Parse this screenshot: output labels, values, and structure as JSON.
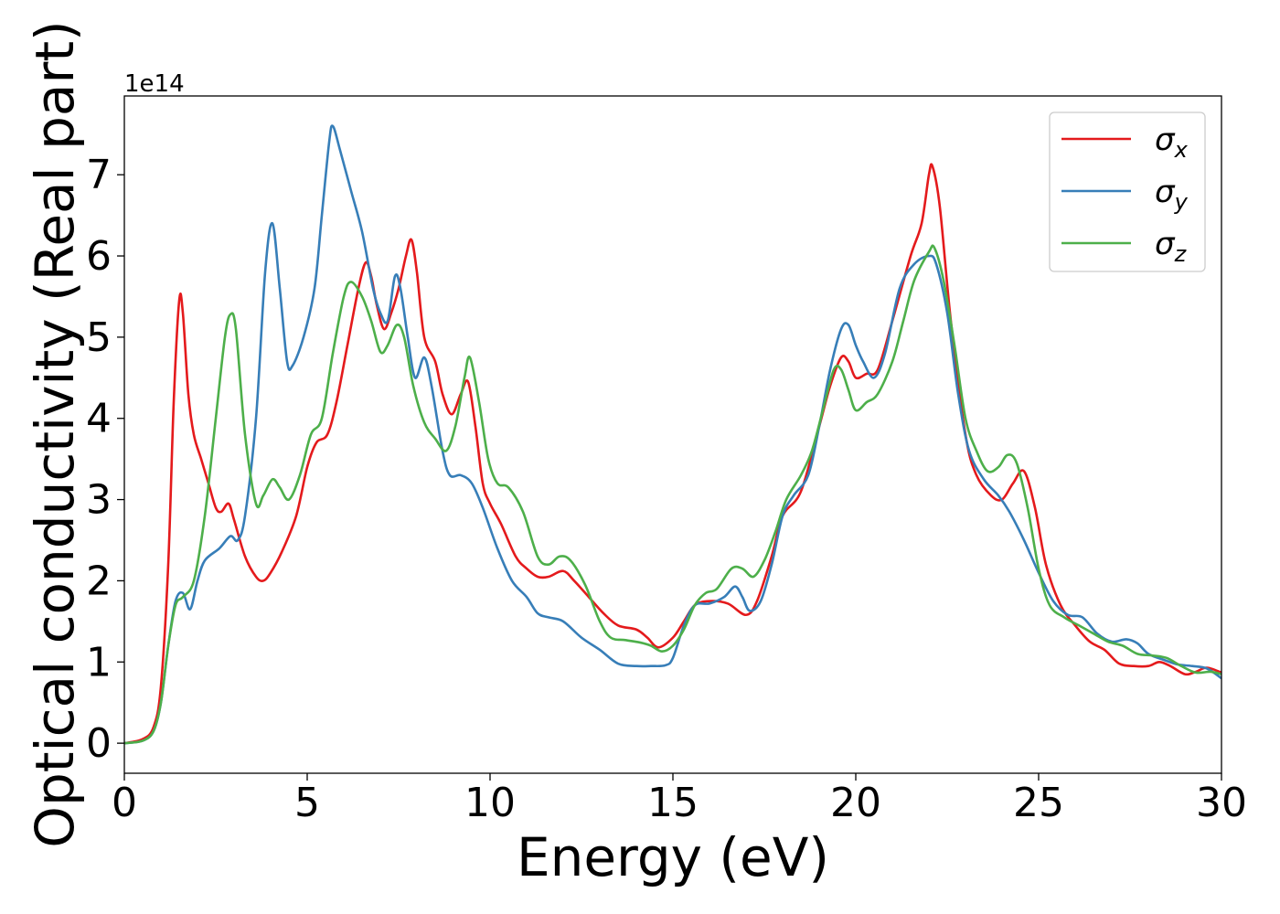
{
  "chart_data": {
    "type": "line",
    "xlabel": "Energy (eV)",
    "ylabel": "Optical conductivity (Real part)",
    "y_offset_text": "1e14",
    "xlim": [
      0,
      30
    ],
    "ylim": [
      -0.37,
      7.97
    ],
    "x_ticks": [
      0,
      5,
      10,
      15,
      20,
      25,
      30
    ],
    "x_tick_labels": [
      "0",
      "5",
      "10",
      "15",
      "20",
      "25",
      "30"
    ],
    "y_ticks": [
      0,
      1,
      2,
      3,
      4,
      5,
      6,
      7
    ],
    "y_tick_labels": [
      "0",
      "1",
      "2",
      "3",
      "4",
      "5",
      "6",
      "7"
    ],
    "y_unit_scale": "1e14",
    "grid": false,
    "legend_position": "top-right",
    "series": [
      {
        "name": "σx",
        "legend_symbol": "σ",
        "legend_subscript": "x",
        "color": "#e41a1c",
        "points": [
          [
            0,
            0
          ],
          [
            0.5,
            0.05
          ],
          [
            0.8,
            0.2
          ],
          [
            1.0,
            0.7
          ],
          [
            1.2,
            2.2
          ],
          [
            1.35,
            4.2
          ],
          [
            1.5,
            5.45
          ],
          [
            1.6,
            5.3
          ],
          [
            1.75,
            4.3
          ],
          [
            1.9,
            3.8
          ],
          [
            2.1,
            3.5
          ],
          [
            2.3,
            3.2
          ],
          [
            2.5,
            2.9
          ],
          [
            2.65,
            2.85
          ],
          [
            2.85,
            2.95
          ],
          [
            3.0,
            2.75
          ],
          [
            3.3,
            2.3
          ],
          [
            3.6,
            2.05
          ],
          [
            3.8,
            2.0
          ],
          [
            4.0,
            2.1
          ],
          [
            4.3,
            2.35
          ],
          [
            4.7,
            2.8
          ],
          [
            5.0,
            3.4
          ],
          [
            5.25,
            3.7
          ],
          [
            5.55,
            3.8
          ],
          [
            5.8,
            4.2
          ],
          [
            6.1,
            4.9
          ],
          [
            6.4,
            5.6
          ],
          [
            6.6,
            5.92
          ],
          [
            6.75,
            5.75
          ],
          [
            6.9,
            5.4
          ],
          [
            7.1,
            5.1
          ],
          [
            7.3,
            5.3
          ],
          [
            7.5,
            5.6
          ],
          [
            7.7,
            6.0
          ],
          [
            7.85,
            6.2
          ],
          [
            8.0,
            5.8
          ],
          [
            8.2,
            5.0
          ],
          [
            8.5,
            4.7
          ],
          [
            8.7,
            4.3
          ],
          [
            8.95,
            4.05
          ],
          [
            9.2,
            4.3
          ],
          [
            9.4,
            4.45
          ],
          [
            9.6,
            3.9
          ],
          [
            9.8,
            3.2
          ],
          [
            10.0,
            2.95
          ],
          [
            10.3,
            2.7
          ],
          [
            10.7,
            2.3
          ],
          [
            11.0,
            2.15
          ],
          [
            11.3,
            2.05
          ],
          [
            11.6,
            2.05
          ],
          [
            12.0,
            2.12
          ],
          [
            12.3,
            2.0
          ],
          [
            12.7,
            1.8
          ],
          [
            13.1,
            1.6
          ],
          [
            13.5,
            1.45
          ],
          [
            14.0,
            1.4
          ],
          [
            14.3,
            1.3
          ],
          [
            14.6,
            1.18
          ],
          [
            15.0,
            1.3
          ],
          [
            15.3,
            1.5
          ],
          [
            15.6,
            1.7
          ],
          [
            16.0,
            1.75
          ],
          [
            16.5,
            1.72
          ],
          [
            17.0,
            1.58
          ],
          [
            17.3,
            1.75
          ],
          [
            17.7,
            2.3
          ],
          [
            18.0,
            2.8
          ],
          [
            18.5,
            3.1
          ],
          [
            19.0,
            3.9
          ],
          [
            19.3,
            4.4
          ],
          [
            19.6,
            4.75
          ],
          [
            19.8,
            4.7
          ],
          [
            20.0,
            4.5
          ],
          [
            20.3,
            4.55
          ],
          [
            20.6,
            4.6
          ],
          [
            21.0,
            5.2
          ],
          [
            21.5,
            6.0
          ],
          [
            21.8,
            6.4
          ],
          [
            22.0,
            7.0
          ],
          [
            22.1,
            7.1
          ],
          [
            22.3,
            6.6
          ],
          [
            22.6,
            5.2
          ],
          [
            23.0,
            3.8
          ],
          [
            23.3,
            3.3
          ],
          [
            23.7,
            3.05
          ],
          [
            24.0,
            3.0
          ],
          [
            24.3,
            3.2
          ],
          [
            24.6,
            3.35
          ],
          [
            24.9,
            2.9
          ],
          [
            25.2,
            2.2
          ],
          [
            25.6,
            1.7
          ],
          [
            26.0,
            1.45
          ],
          [
            26.4,
            1.25
          ],
          [
            26.8,
            1.15
          ],
          [
            27.2,
            0.98
          ],
          [
            27.6,
            0.95
          ],
          [
            28.0,
            0.95
          ],
          [
            28.3,
            1.0
          ],
          [
            28.6,
            0.95
          ],
          [
            29.0,
            0.85
          ],
          [
            29.3,
            0.88
          ],
          [
            29.6,
            0.93
          ],
          [
            30.0,
            0.87
          ]
        ]
      },
      {
        "name": "σy",
        "legend_symbol": "σ",
        "legend_subscript": "y",
        "color": "#377eb8",
        "points": [
          [
            0,
            0
          ],
          [
            0.5,
            0.03
          ],
          [
            0.8,
            0.15
          ],
          [
            1.0,
            0.5
          ],
          [
            1.2,
            1.2
          ],
          [
            1.4,
            1.75
          ],
          [
            1.6,
            1.85
          ],
          [
            1.8,
            1.65
          ],
          [
            2.0,
            2.0
          ],
          [
            2.2,
            2.25
          ],
          [
            2.6,
            2.4
          ],
          [
            2.9,
            2.55
          ],
          [
            3.1,
            2.5
          ],
          [
            3.3,
            2.8
          ],
          [
            3.6,
            4.0
          ],
          [
            3.85,
            5.8
          ],
          [
            4.05,
            6.4
          ],
          [
            4.25,
            5.6
          ],
          [
            4.45,
            4.7
          ],
          [
            4.6,
            4.65
          ],
          [
            4.9,
            5.0
          ],
          [
            5.2,
            5.6
          ],
          [
            5.4,
            6.5
          ],
          [
            5.6,
            7.4
          ],
          [
            5.7,
            7.6
          ],
          [
            5.9,
            7.3
          ],
          [
            6.2,
            6.8
          ],
          [
            6.5,
            6.3
          ],
          [
            6.8,
            5.6
          ],
          [
            7.0,
            5.3
          ],
          [
            7.2,
            5.2
          ],
          [
            7.4,
            5.75
          ],
          [
            7.55,
            5.6
          ],
          [
            7.75,
            5.0
          ],
          [
            7.95,
            4.5
          ],
          [
            8.2,
            4.75
          ],
          [
            8.4,
            4.4
          ],
          [
            8.7,
            3.6
          ],
          [
            8.9,
            3.3
          ],
          [
            9.2,
            3.3
          ],
          [
            9.5,
            3.2
          ],
          [
            9.8,
            2.9
          ],
          [
            10.2,
            2.4
          ],
          [
            10.6,
            2.0
          ],
          [
            11.0,
            1.8
          ],
          [
            11.3,
            1.6
          ],
          [
            11.6,
            1.55
          ],
          [
            12.0,
            1.5
          ],
          [
            12.5,
            1.3
          ],
          [
            13.0,
            1.15
          ],
          [
            13.5,
            0.98
          ],
          [
            14.0,
            0.95
          ],
          [
            14.4,
            0.95
          ],
          [
            14.8,
            0.96
          ],
          [
            15.0,
            1.05
          ],
          [
            15.3,
            1.45
          ],
          [
            15.6,
            1.7
          ],
          [
            16.0,
            1.72
          ],
          [
            16.4,
            1.8
          ],
          [
            16.7,
            1.93
          ],
          [
            16.9,
            1.8
          ],
          [
            17.1,
            1.63
          ],
          [
            17.4,
            1.75
          ],
          [
            17.7,
            2.2
          ],
          [
            18.0,
            2.8
          ],
          [
            18.3,
            3.05
          ],
          [
            18.7,
            3.3
          ],
          [
            19.0,
            3.9
          ],
          [
            19.3,
            4.6
          ],
          [
            19.6,
            5.1
          ],
          [
            19.8,
            5.15
          ],
          [
            20.0,
            4.9
          ],
          [
            20.2,
            4.7
          ],
          [
            20.5,
            4.5
          ],
          [
            20.8,
            4.8
          ],
          [
            21.2,
            5.6
          ],
          [
            21.6,
            5.9
          ],
          [
            22.0,
            6.0
          ],
          [
            22.2,
            5.9
          ],
          [
            22.5,
            5.3
          ],
          [
            22.8,
            4.3
          ],
          [
            23.1,
            3.6
          ],
          [
            23.5,
            3.25
          ],
          [
            23.9,
            3.05
          ],
          [
            24.2,
            2.85
          ],
          [
            24.6,
            2.5
          ],
          [
            25.0,
            2.1
          ],
          [
            25.4,
            1.75
          ],
          [
            25.8,
            1.58
          ],
          [
            26.2,
            1.55
          ],
          [
            26.6,
            1.35
          ],
          [
            27.0,
            1.25
          ],
          [
            27.4,
            1.28
          ],
          [
            27.7,
            1.23
          ],
          [
            28.0,
            1.1
          ],
          [
            28.4,
            1.03
          ],
          [
            28.8,
            0.97
          ],
          [
            29.2,
            0.95
          ],
          [
            29.6,
            0.92
          ],
          [
            30.0,
            0.8
          ]
        ]
      },
      {
        "name": "σz",
        "legend_symbol": "σ",
        "legend_subscript": "z",
        "color": "#4daf4a",
        "points": [
          [
            0,
            0
          ],
          [
            0.5,
            0.03
          ],
          [
            0.8,
            0.15
          ],
          [
            1.0,
            0.5
          ],
          [
            1.2,
            1.2
          ],
          [
            1.4,
            1.7
          ],
          [
            1.6,
            1.8
          ],
          [
            1.9,
            2.0
          ],
          [
            2.2,
            2.8
          ],
          [
            2.5,
            4.0
          ],
          [
            2.75,
            5.0
          ],
          [
            2.9,
            5.28
          ],
          [
            3.05,
            5.1
          ],
          [
            3.3,
            3.8
          ],
          [
            3.6,
            2.95
          ],
          [
            3.8,
            3.05
          ],
          [
            4.05,
            3.25
          ],
          [
            4.25,
            3.15
          ],
          [
            4.5,
            3.0
          ],
          [
            4.8,
            3.3
          ],
          [
            5.1,
            3.8
          ],
          [
            5.4,
            4.0
          ],
          [
            5.7,
            4.8
          ],
          [
            6.0,
            5.5
          ],
          [
            6.2,
            5.68
          ],
          [
            6.5,
            5.5
          ],
          [
            6.75,
            5.2
          ],
          [
            7.0,
            4.82
          ],
          [
            7.2,
            4.9
          ],
          [
            7.45,
            5.15
          ],
          [
            7.65,
            5.0
          ],
          [
            7.9,
            4.4
          ],
          [
            8.2,
            3.95
          ],
          [
            8.5,
            3.75
          ],
          [
            8.8,
            3.6
          ],
          [
            9.05,
            3.9
          ],
          [
            9.3,
            4.5
          ],
          [
            9.45,
            4.75
          ],
          [
            9.7,
            4.2
          ],
          [
            9.95,
            3.5
          ],
          [
            10.2,
            3.2
          ],
          [
            10.5,
            3.15
          ],
          [
            10.9,
            2.85
          ],
          [
            11.3,
            2.3
          ],
          [
            11.6,
            2.2
          ],
          [
            11.9,
            2.3
          ],
          [
            12.2,
            2.25
          ],
          [
            12.6,
            1.95
          ],
          [
            13.0,
            1.5
          ],
          [
            13.3,
            1.3
          ],
          [
            13.7,
            1.27
          ],
          [
            14.1,
            1.24
          ],
          [
            14.4,
            1.2
          ],
          [
            14.7,
            1.13
          ],
          [
            15.0,
            1.2
          ],
          [
            15.3,
            1.4
          ],
          [
            15.6,
            1.7
          ],
          [
            15.9,
            1.85
          ],
          [
            16.2,
            1.9
          ],
          [
            16.6,
            2.15
          ],
          [
            16.9,
            2.15
          ],
          [
            17.2,
            2.05
          ],
          [
            17.5,
            2.25
          ],
          [
            17.8,
            2.6
          ],
          [
            18.1,
            3.0
          ],
          [
            18.5,
            3.3
          ],
          [
            18.8,
            3.6
          ],
          [
            19.1,
            4.1
          ],
          [
            19.4,
            4.6
          ],
          [
            19.6,
            4.6
          ],
          [
            19.8,
            4.35
          ],
          [
            20.0,
            4.1
          ],
          [
            20.3,
            4.2
          ],
          [
            20.6,
            4.3
          ],
          [
            21.0,
            4.7
          ],
          [
            21.3,
            5.2
          ],
          [
            21.6,
            5.7
          ],
          [
            22.0,
            6.05
          ],
          [
            22.15,
            6.1
          ],
          [
            22.4,
            5.7
          ],
          [
            22.7,
            4.9
          ],
          [
            23.0,
            4.0
          ],
          [
            23.3,
            3.6
          ],
          [
            23.6,
            3.35
          ],
          [
            23.9,
            3.4
          ],
          [
            24.15,
            3.55
          ],
          [
            24.4,
            3.45
          ],
          [
            24.7,
            2.9
          ],
          [
            25.0,
            2.15
          ],
          [
            25.3,
            1.7
          ],
          [
            25.7,
            1.55
          ],
          [
            26.1,
            1.45
          ],
          [
            26.5,
            1.35
          ],
          [
            26.9,
            1.25
          ],
          [
            27.3,
            1.2
          ],
          [
            27.7,
            1.1
          ],
          [
            28.1,
            1.08
          ],
          [
            28.5,
            1.05
          ],
          [
            28.9,
            0.95
          ],
          [
            29.3,
            0.87
          ],
          [
            29.7,
            0.88
          ],
          [
            30.0,
            0.85
          ]
        ]
      }
    ]
  }
}
